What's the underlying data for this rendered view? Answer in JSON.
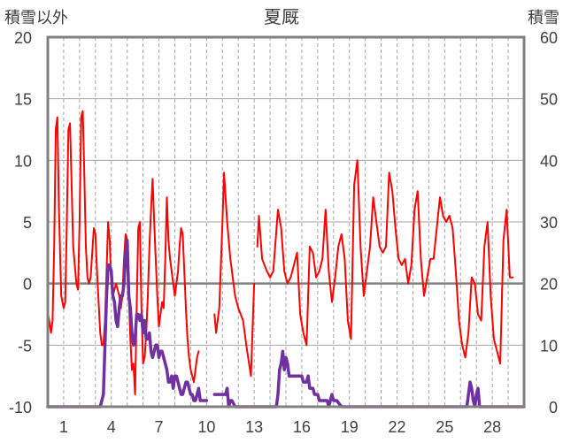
{
  "chart_data": {
    "type": "line",
    "title": "夏厩",
    "left_axis_label": "積雪以外",
    "right_axis_label": "積雪",
    "x_range": [
      0,
      30
    ],
    "x_ticks": [
      1,
      4,
      7,
      10,
      13,
      16,
      19,
      22,
      25,
      28
    ],
    "x_ticklabels": [
      "1",
      "4",
      "7",
      "10",
      "13",
      "16",
      "19",
      "22",
      "25",
      "28"
    ],
    "y_left_range": [
      -10,
      20
    ],
    "y_left_ticks": [
      20,
      15,
      10,
      5,
      0,
      -5,
      -10
    ],
    "y_left_ticklabels": [
      "20",
      "15",
      "10",
      "5",
      "0",
      "-5",
      "-10"
    ],
    "y_right_range": [
      0,
      60
    ],
    "y_right_ticks": [
      60,
      50,
      40,
      30,
      20,
      10,
      0
    ],
    "y_right_ticklabels": [
      "60",
      "50",
      "40",
      "30",
      "20",
      "10",
      "0"
    ],
    "grid": "horizontal solid, vertical dashed daily",
    "zero_line": 0,
    "colors": {
      "temperature": "#ff0000",
      "snow": "#7030a0",
      "axis": "#808080",
      "grid": "#a6a6a6"
    },
    "series": [
      {
        "axis": "left",
        "color": "#ff0000",
        "x": [
          0.0,
          0.2,
          0.3,
          0.4,
          0.5,
          0.6,
          0.7,
          0.85,
          1.0,
          1.1,
          1.2,
          1.3,
          1.4,
          1.5,
          1.6,
          1.8,
          1.9,
          2.0,
          2.1,
          2.2,
          2.3,
          2.4,
          2.5,
          2.6,
          2.7,
          2.8,
          2.9,
          3.0,
          3.1,
          3.2,
          3.3,
          3.4,
          3.5,
          3.6,
          3.7,
          3.8,
          3.9,
          4.0,
          4.1,
          4.2,
          4.3,
          4.4,
          4.5,
          4.6,
          4.7,
          4.8,
          4.9,
          5.0,
          5.1,
          5.2,
          5.3,
          5.4,
          5.5,
          5.6,
          5.7,
          5.8,
          5.9,
          6.0,
          6.1,
          6.2,
          6.3,
          6.4,
          6.5,
          6.6,
          6.7,
          6.8,
          6.9,
          7.0,
          7.1,
          7.2,
          7.3,
          7.4,
          7.5,
          7.6,
          7.7,
          7.8,
          7.9,
          8.0,
          8.1,
          8.2,
          8.3,
          8.4,
          8.5,
          8.6,
          8.7,
          8.8,
          8.9,
          9.0,
          9.1,
          9.2,
          9.3,
          9.4,
          9.5
        ],
        "y": [
          -2.3,
          -4.0,
          -3.0,
          3.0,
          12.5,
          13.5,
          6.0,
          -1.0,
          -2.0,
          -1.5,
          5.0,
          12.5,
          13.0,
          8.0,
          3.0,
          0.0,
          -0.5,
          5.0,
          13.5,
          14.0,
          9.0,
          3.0,
          0.5,
          0.0,
          0.5,
          2.5,
          4.5,
          4.0,
          1.0,
          -1.5,
          -4.0,
          -5.0,
          -5.0,
          -3.0,
          1.0,
          5.0,
          3.5,
          0.0,
          -1.0,
          -0.5,
          0.0,
          -0.5,
          -1.0,
          -2.0,
          -1.0,
          2.0,
          4.0,
          3.5,
          -1.0,
          -4.5,
          -7.0,
          -6.5,
          -9.0,
          -2.0,
          4.5,
          5.0,
          -2.0,
          -6.5,
          -6.0,
          -4.0,
          -1.0,
          3.0,
          6.0,
          8.5,
          5.0,
          2.0,
          -1.0,
          -3.5,
          -2.5,
          -1.5,
          -2.0,
          2.0,
          7.0,
          3.5,
          2.0,
          1.0,
          0.0,
          -1.0,
          0.0,
          1.0,
          3.0,
          4.5,
          4.0,
          1.0,
          -2.0,
          -4.5,
          -6.0,
          -7.0,
          -7.5,
          -8.0,
          -7.0,
          -6.0,
          -5.5
        ]
      },
      {
        "axis": "left",
        "color": "#ff0000",
        "x": [
          10.5,
          10.6,
          10.8,
          11.0,
          11.1,
          11.3,
          11.5,
          11.8,
          12.0,
          12.3,
          12.5,
          12.8,
          13.0
        ],
        "y": [
          -2.5,
          -4.0,
          -2.0,
          5.0,
          9.0,
          5.0,
          2.0,
          -1.0,
          -2.0,
          -3.0,
          -5.0,
          -7.5,
          0.0
        ]
      },
      {
        "axis": "left",
        "color": "#ff0000",
        "x": [
          13.2,
          13.3,
          13.5,
          13.8,
          14.0,
          14.2,
          14.5,
          14.7,
          14.9,
          15.1,
          15.3,
          15.5,
          15.7,
          15.9,
          16.1,
          16.3,
          16.5,
          16.7,
          16.9,
          17.1,
          17.3,
          17.5,
          17.7,
          17.9,
          18.1,
          18.3,
          18.5,
          18.7,
          18.9,
          19.1,
          19.3,
          19.5,
          19.7,
          19.9,
          20.1,
          20.3,
          20.5,
          20.7,
          20.9,
          21.1,
          21.3,
          21.5,
          21.7,
          21.9,
          22.1,
          22.3,
          22.5,
          22.7,
          22.9,
          23.1,
          23.3,
          23.5,
          23.7,
          23.9,
          24.1,
          24.3,
          24.5,
          24.7,
          24.9,
          25.1,
          25.3,
          25.5,
          25.7,
          25.9,
          26.1,
          26.3,
          26.5,
          26.7,
          26.9,
          27.1,
          27.3,
          27.5,
          27.7,
          27.9,
          28.1,
          28.3,
          28.5,
          28.7,
          28.9,
          29.1,
          29.3
        ],
        "y": [
          3.0,
          5.5,
          2.0,
          1.0,
          0.5,
          1.0,
          6.0,
          4.5,
          1.0,
          0.0,
          0.5,
          1.5,
          2.5,
          -2.5,
          -4.0,
          -5.0,
          3.0,
          2.5,
          0.5,
          1.0,
          2.0,
          6.0,
          1.0,
          -1.5,
          0.5,
          3.0,
          4.0,
          2.0,
          -3.0,
          -4.5,
          8.0,
          10.0,
          3.0,
          -1.0,
          1.0,
          3.0,
          7.0,
          5.0,
          3.0,
          2.5,
          3.0,
          9.0,
          7.5,
          4.5,
          2.0,
          1.5,
          2.0,
          0.0,
          1.5,
          6.0,
          7.5,
          2.0,
          -1.0,
          0.5,
          2.0,
          2.0,
          4.5,
          7.0,
          5.5,
          5.0,
          5.5,
          4.5,
          1.0,
          -3.0,
          -5.0,
          -6.0,
          -4.0,
          0.5,
          0.0,
          -2.5,
          -3.0,
          3.0,
          5.0,
          -1.0,
          -4.5,
          -5.5,
          -6.5,
          3.5,
          6.0,
          0.5,
          0.5
        ]
      },
      {
        "axis": "right",
        "color": "#7030a0",
        "x": [
          0.0,
          3.3,
          3.5,
          3.6,
          3.7,
          3.8,
          3.9,
          4.0,
          4.1,
          4.2,
          4.3,
          4.4,
          4.5,
          4.6,
          4.7,
          4.8,
          4.9,
          5.0,
          5.1,
          5.2,
          5.3,
          5.4,
          5.5,
          5.6,
          5.7,
          5.8,
          5.9,
          6.0,
          6.1,
          6.2,
          6.3,
          6.4,
          6.5,
          6.6,
          6.7,
          6.8,
          6.9,
          7.0,
          7.1,
          7.2,
          7.3,
          7.4,
          7.5,
          7.6,
          7.7,
          7.8,
          7.9,
          8.0,
          8.1,
          8.2,
          8.3,
          8.4,
          8.5,
          8.6,
          8.7,
          8.8,
          8.9,
          9.0,
          9.1,
          9.2,
          9.3,
          9.4,
          9.5,
          9.6,
          9.7,
          9.8,
          9.9,
          10.0
        ],
        "y": [
          0,
          0,
          2,
          10,
          18,
          23,
          23,
          22,
          18,
          17,
          14,
          13,
          16,
          18,
          18,
          20,
          25,
          27,
          18,
          16,
          12,
          10,
          11,
          15,
          15,
          14,
          15,
          12,
          14,
          11,
          11,
          12,
          9,
          8,
          9,
          10,
          10,
          8,
          9,
          9,
          8,
          7,
          6,
          4,
          4,
          5,
          3,
          5,
          5,
          4,
          3,
          2,
          2,
          3,
          4,
          4,
          3,
          2,
          2,
          1,
          1,
          2,
          3,
          1,
          1,
          1,
          1,
          1
        ]
      },
      {
        "axis": "right",
        "color": "#7030a0",
        "x": [
          10.5,
          11.2,
          11.3,
          11.4,
          11.5,
          11.6,
          11.8,
          12.0,
          12.5,
          13.0,
          13.5,
          14.0,
          14.4,
          14.5,
          14.6,
          14.7,
          14.8,
          14.9,
          15.0,
          15.1,
          15.2,
          15.3,
          15.4,
          15.5,
          15.6,
          15.7,
          15.8,
          15.9,
          16.0,
          16.1,
          16.2,
          16.3,
          16.4,
          16.5,
          16.6,
          16.7,
          16.8,
          16.9,
          17.0,
          17.1,
          17.2,
          17.3,
          17.4,
          17.5,
          17.6,
          17.7,
          17.8,
          17.9,
          18.0,
          18.2,
          18.5,
          19.0,
          26.0,
          26.4,
          26.5,
          26.6,
          26.7,
          26.8,
          26.9,
          27.0,
          27.1,
          27.2,
          27.3,
          30.0
        ],
        "y": [
          2,
          2,
          3,
          0,
          1,
          1,
          0,
          0,
          0,
          0,
          0,
          0,
          0,
          2,
          6,
          7,
          9,
          6,
          8,
          7,
          5,
          5,
          5,
          5,
          5,
          5,
          5,
          5,
          5,
          4,
          4,
          4,
          5,
          3,
          3,
          3,
          2,
          2,
          2,
          1,
          1,
          1,
          1,
          1,
          1,
          0,
          1,
          2,
          1,
          1,
          0,
          0,
          0,
          0,
          2,
          4,
          3,
          1,
          0,
          2,
          3,
          0,
          0,
          0
        ]
      }
    ]
  }
}
